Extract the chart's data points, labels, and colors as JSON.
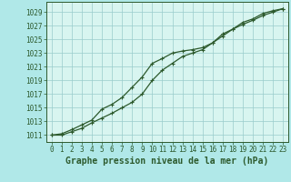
{
  "title": "Graphe pression niveau de la mer (hPa)",
  "bg_color": "#b0e8e8",
  "plot_bg_color": "#d8f5f0",
  "grid_color": "#99cccc",
  "line_color": "#2d5a2d",
  "tick_fontsize": 5.5,
  "xlabel_fontsize": 7.0,
  "xlim": [
    -0.5,
    23.5
  ],
  "ylim": [
    1010.0,
    1030.5
  ],
  "yticks": [
    1011,
    1013,
    1015,
    1017,
    1019,
    1021,
    1023,
    1025,
    1027,
    1029
  ],
  "xticks": [
    0,
    1,
    2,
    3,
    4,
    5,
    6,
    7,
    8,
    9,
    10,
    11,
    12,
    13,
    14,
    15,
    16,
    17,
    18,
    19,
    20,
    21,
    22,
    23
  ],
  "series1_x": [
    0,
    1,
    2,
    3,
    4,
    5,
    6,
    7,
    8,
    9,
    10,
    11,
    12,
    13,
    14,
    15,
    16,
    17,
    18,
    19,
    20,
    21,
    22,
    23
  ],
  "series1_y": [
    1011.0,
    1011.2,
    1011.8,
    1012.5,
    1013.2,
    1014.8,
    1015.5,
    1016.5,
    1018.0,
    1019.5,
    1021.5,
    1022.2,
    1023.0,
    1023.3,
    1023.5,
    1023.8,
    1024.5,
    1025.5,
    1026.5,
    1027.2,
    1027.8,
    1028.5,
    1029.0,
    1029.5
  ],
  "series2_x": [
    0,
    1,
    2,
    3,
    4,
    5,
    6,
    7,
    8,
    9,
    10,
    11,
    12,
    13,
    14,
    15,
    16,
    17,
    18,
    19,
    20,
    21,
    22,
    23
  ],
  "series2_y": [
    1011.0,
    1011.0,
    1011.5,
    1012.0,
    1012.8,
    1013.5,
    1014.2,
    1015.0,
    1015.8,
    1017.0,
    1019.0,
    1020.5,
    1021.5,
    1022.5,
    1023.0,
    1023.5,
    1024.5,
    1025.8,
    1026.5,
    1027.5,
    1028.0,
    1028.8,
    1029.2,
    1029.5
  ]
}
